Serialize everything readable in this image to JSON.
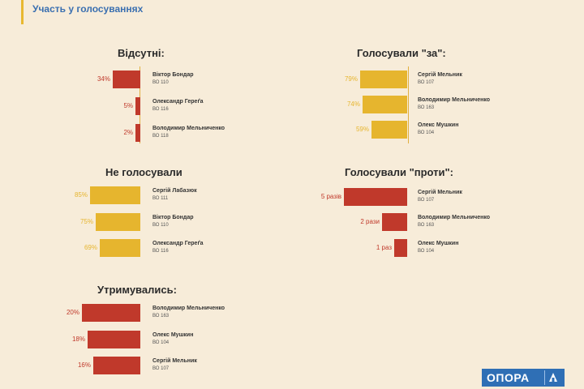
{
  "header": {
    "title": "Участь у голосуваннях"
  },
  "logo": {
    "text": "ОПОРА"
  },
  "colors": {
    "red": "#c0392b",
    "yellow": "#e6b52e",
    "accent": "#3a6fb0"
  },
  "chart_data": [
    {
      "type": "bar",
      "title": "Відсутні:",
      "color": "#c0392b",
      "rows": [
        {
          "label": "34%",
          "value": 34,
          "name": "Віктор Бондар",
          "id": "ВО 110"
        },
        {
          "label": "5%",
          "value": 5,
          "name": "Олександр Гереґа",
          "id": "ВО 116"
        },
        {
          "label": "2%",
          "value": 2,
          "name": "Володимир Мельниченко",
          "id": "ВО 118"
        }
      ]
    },
    {
      "type": "bar",
      "title": "Голосували \"за\":",
      "color": "#e6b52e",
      "rows": [
        {
          "label": "79%",
          "value": 79,
          "name": "Сергій Мельник",
          "id": "ВО 107"
        },
        {
          "label": "74%",
          "value": 74,
          "name": "Володимир Мельниченко",
          "id": "ВО 163"
        },
        {
          "label": "59%",
          "value": 59,
          "name": "Олекс Мушкин",
          "id": "ВО 104"
        }
      ]
    },
    {
      "type": "bar",
      "title": "Не голосували",
      "color": "#e6b52e",
      "rows": [
        {
          "label": "85%",
          "value": 85,
          "name": "Сергій Лабазюк",
          "id": "ВО 111"
        },
        {
          "label": "75%",
          "value": 75,
          "name": "Віктор Бондар",
          "id": "ВО 110"
        },
        {
          "label": "69%",
          "value": 69,
          "name": "Олександр Гереґа",
          "id": "ВО 116"
        }
      ]
    },
    {
      "type": "bar",
      "title": "Голосували \"проти\":",
      "color": "#c0392b",
      "rows": [
        {
          "label": "5 разів",
          "value": 5,
          "name": "Сергій Мельник",
          "id": "ВО 107"
        },
        {
          "label": "2 рази",
          "value": 2,
          "name": "Володимир Мельниченко",
          "id": "ВО 163"
        },
        {
          "label": "1 раз",
          "value": 1,
          "name": "Олекс Мушкин",
          "id": "ВО 104"
        }
      ]
    },
    {
      "type": "bar",
      "title": "Утримувались:",
      "color": "#c0392b",
      "rows": [
        {
          "label": "20%",
          "value": 20,
          "name": "Володимир Мельниченко",
          "id": "ВО 163"
        },
        {
          "label": "18%",
          "value": 18,
          "name": "Олекс Мушкин",
          "id": "ВО 104"
        },
        {
          "label": "16%",
          "value": 16,
          "name": "Сергій Мельник",
          "id": "ВО 107"
        }
      ]
    }
  ]
}
